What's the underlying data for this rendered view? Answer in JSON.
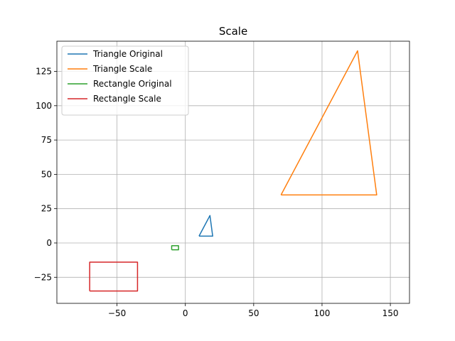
{
  "chart_data": {
    "type": "line",
    "title": "Scale",
    "xlabel": "",
    "ylabel": "",
    "xlim": [
      -94,
      164
    ],
    "ylim": [
      -44,
      147
    ],
    "xticks": [
      -50,
      0,
      50,
      100,
      150
    ],
    "yticks": [
      -25,
      0,
      25,
      50,
      75,
      100,
      125
    ],
    "xtick_labels": [
      "−50",
      "0",
      "50",
      "100",
      "150"
    ],
    "ytick_labels": [
      "−25",
      "0",
      "25",
      "50",
      "75",
      "100",
      "125"
    ],
    "grid": true,
    "legend_position": "top-left",
    "series": [
      {
        "name": "Triangle Original",
        "color": "#1f77b4",
        "x": [
          10,
          20,
          18,
          10
        ],
        "y": [
          5,
          5,
          20,
          5
        ]
      },
      {
        "name": "Triangle Scale",
        "color": "#ff7f0e",
        "x": [
          70,
          140,
          126,
          70
        ],
        "y": [
          35,
          35,
          140,
          35
        ]
      },
      {
        "name": "Rectangle Original",
        "color": "#2ca02c",
        "x": [
          -10,
          -5,
          -5,
          -10,
          -10
        ],
        "y": [
          -5,
          -5,
          -2,
          -2,
          -5
        ]
      },
      {
        "name": "Rectangle Scale",
        "color": "#d62728",
        "x": [
          -70,
          -35,
          -35,
          -70,
          -70
        ],
        "y": [
          -35,
          -35,
          -14,
          -14,
          -35
        ]
      }
    ]
  }
}
